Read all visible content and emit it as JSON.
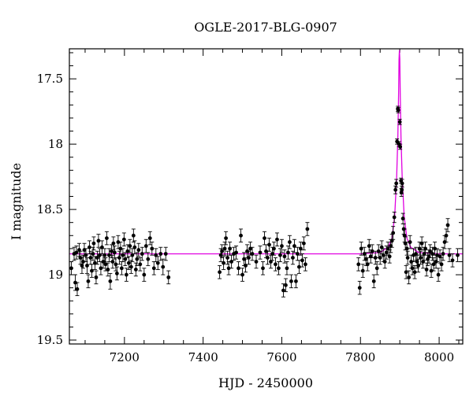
{
  "chart_data": {
    "type": "scatter",
    "title": "OGLE-2017-BLG-0907",
    "xlabel": "HJD - 2450000",
    "ylabel": "I magnitude",
    "xlim": [
      7060,
      8060
    ],
    "ylim": [
      19.53,
      17.27
    ],
    "y_inverted": true,
    "x_ticks": [
      7200,
      7400,
      7600,
      7800,
      8000
    ],
    "y_ticks": [
      17.5,
      18,
      18.5,
      19,
      19.5
    ],
    "x_tick_labels": [
      "7200",
      "7400",
      "7600",
      "7800",
      "8000"
    ],
    "y_tick_labels": [
      "17.5",
      "18",
      "18.5",
      "19",
      "19.5"
    ],
    "grid": false,
    "colors": {
      "points": "#000000",
      "model": "#e000e0"
    },
    "model": {
      "baseline": 18.84,
      "t0": 7899,
      "peak_mag": 17.28,
      "tE": 10.0,
      "u0": 0.04,
      "curve": [
        [
          7060,
          18.84
        ],
        [
          7800,
          18.84
        ],
        [
          7850,
          18.83
        ],
        [
          7870,
          18.79
        ],
        [
          7880,
          18.72
        ],
        [
          7887,
          18.55
        ],
        [
          7892,
          18.25
        ],
        [
          7895,
          17.95
        ],
        [
          7897,
          17.6
        ],
        [
          7898,
          17.35
        ],
        [
          7899,
          17.28
        ],
        [
          7900,
          17.35
        ],
        [
          7901,
          17.6
        ],
        [
          7903,
          17.95
        ],
        [
          7906,
          18.25
        ],
        [
          7911,
          18.55
        ],
        [
          7918,
          18.72
        ],
        [
          7928,
          18.79
        ],
        [
          7948,
          18.83
        ],
        [
          8000,
          18.84
        ],
        [
          8060,
          18.84
        ]
      ]
    },
    "series": [
      {
        "points": [
          [
            7065,
            18.95,
            0.05
          ],
          [
            7072,
            18.84,
            0.05
          ],
          [
            7075,
            19.06,
            0.06
          ],
          [
            7078,
            18.83,
            0.05
          ],
          [
            7080,
            19.11,
            0.05
          ],
          [
            7085,
            18.81,
            0.05
          ],
          [
            7088,
            18.87,
            0.05
          ],
          [
            7092,
            18.93,
            0.06
          ],
          [
            7095,
            18.9,
            0.05
          ],
          [
            7098,
            18.81,
            0.05
          ],
          [
            7102,
            18.85,
            0.05
          ],
          [
            7105,
            18.93,
            0.06
          ],
          [
            7108,
            19.05,
            0.05
          ],
          [
            7111,
            18.79,
            0.05
          ],
          [
            7114,
            18.87,
            0.05
          ],
          [
            7117,
            18.97,
            0.05
          ],
          [
            7120,
            18.84,
            0.05
          ],
          [
            7122,
            18.76,
            0.05
          ],
          [
            7125,
            18.91,
            0.05
          ],
          [
            7128,
            19.02,
            0.05
          ],
          [
            7131,
            18.87,
            0.05
          ],
          [
            7134,
            18.74,
            0.05
          ],
          [
            7137,
            18.85,
            0.05
          ],
          [
            7140,
            18.95,
            0.05
          ],
          [
            7143,
            18.79,
            0.05
          ],
          [
            7146,
            18.9,
            0.05
          ],
          [
            7150,
            18.85,
            0.05
          ],
          [
            7152,
            18.92,
            0.05
          ],
          [
            7155,
            18.72,
            0.05
          ],
          [
            7158,
            18.96,
            0.05
          ],
          [
            7161,
            18.85,
            0.05
          ],
          [
            7164,
            19.05,
            0.06
          ],
          [
            7167,
            18.82,
            0.05
          ],
          [
            7170,
            18.9,
            0.05
          ],
          [
            7172,
            18.76,
            0.05
          ],
          [
            7175,
            18.83,
            0.05
          ],
          [
            7178,
            18.92,
            0.05
          ],
          [
            7181,
            18.99,
            0.05
          ],
          [
            7184,
            18.75,
            0.05
          ],
          [
            7187,
            18.87,
            0.05
          ],
          [
            7190,
            18.8,
            0.05
          ],
          [
            7193,
            18.95,
            0.05
          ],
          [
            7196,
            18.85,
            0.05
          ],
          [
            7199,
            18.73,
            0.05
          ],
          [
            7202,
            18.88,
            0.05
          ],
          [
            7205,
            19.0,
            0.05
          ],
          [
            7208,
            18.82,
            0.05
          ],
          [
            7211,
            18.91,
            0.05
          ],
          [
            7214,
            18.78,
            0.05
          ],
          [
            7217,
            18.94,
            0.05
          ],
          [
            7220,
            18.85,
            0.05
          ],
          [
            7223,
            18.7,
            0.05
          ],
          [
            7226,
            18.79,
            0.05
          ],
          [
            7229,
            18.96,
            0.05
          ],
          [
            7232,
            18.88,
            0.05
          ],
          [
            7236,
            18.81,
            0.05
          ],
          [
            7240,
            18.92,
            0.05
          ],
          [
            7245,
            18.84,
            0.05
          ],
          [
            7250,
            19.0,
            0.05
          ],
          [
            7255,
            18.78,
            0.05
          ],
          [
            7260,
            18.88,
            0.05
          ],
          [
            7265,
            18.72,
            0.05
          ],
          [
            7270,
            18.8,
            0.05
          ],
          [
            7275,
            18.95,
            0.05
          ],
          [
            7280,
            18.85,
            0.05
          ],
          [
            7285,
            18.91,
            0.05
          ],
          [
            7292,
            18.84,
            0.05
          ],
          [
            7298,
            18.94,
            0.06
          ],
          [
            7305,
            18.84,
            0.05
          ],
          [
            7312,
            19.02,
            0.05
          ],
          [
            7442,
            18.98,
            0.05
          ],
          [
            7445,
            18.85,
            0.05
          ],
          [
            7448,
            18.82,
            0.05
          ],
          [
            7452,
            18.91,
            0.05
          ],
          [
            7455,
            18.8,
            0.05
          ],
          [
            7458,
            18.72,
            0.05
          ],
          [
            7462,
            18.87,
            0.05
          ],
          [
            7465,
            18.95,
            0.05
          ],
          [
            7468,
            18.8,
            0.05
          ],
          [
            7472,
            18.9,
            0.05
          ],
          [
            7478,
            18.84,
            0.05
          ],
          [
            7484,
            18.83,
            0.05
          ],
          [
            7490,
            18.95,
            0.05
          ],
          [
            7496,
            18.7,
            0.05
          ],
          [
            7500,
            19.0,
            0.05
          ],
          [
            7504,
            18.88,
            0.05
          ],
          [
            7508,
            18.93,
            0.05
          ],
          [
            7512,
            18.82,
            0.05
          ],
          [
            7516,
            18.87,
            0.05
          ],
          [
            7520,
            18.8,
            0.05
          ],
          [
            7525,
            18.84,
            0.05
          ],
          [
            7535,
            18.9,
            0.05
          ],
          [
            7545,
            18.83,
            0.05
          ],
          [
            7552,
            18.95,
            0.05
          ],
          [
            7556,
            18.72,
            0.05
          ],
          [
            7560,
            18.82,
            0.05
          ],
          [
            7564,
            18.87,
            0.05
          ],
          [
            7568,
            18.77,
            0.05
          ],
          [
            7572,
            18.9,
            0.05
          ],
          [
            7576,
            18.84,
            0.05
          ],
          [
            7580,
            18.8,
            0.05
          ],
          [
            7584,
            18.92,
            0.05
          ],
          [
            7588,
            18.73,
            0.05
          ],
          [
            7592,
            18.95,
            0.05
          ],
          [
            7596,
            18.85,
            0.05
          ],
          [
            7600,
            18.78,
            0.05
          ],
          [
            7604,
            19.12,
            0.05
          ],
          [
            7607,
            18.86,
            0.05
          ],
          [
            7610,
            19.08,
            0.05
          ],
          [
            7613,
            18.95,
            0.05
          ],
          [
            7616,
            18.83,
            0.05
          ],
          [
            7620,
            18.75,
            0.05
          ],
          [
            7624,
            19.05,
            0.05
          ],
          [
            7628,
            18.87,
            0.05
          ],
          [
            7632,
            18.78,
            0.05
          ],
          [
            7636,
            19.05,
            0.05
          ],
          [
            7640,
            18.84,
            0.05
          ],
          [
            7644,
            18.94,
            0.05
          ],
          [
            7648,
            18.8,
            0.05
          ],
          [
            7652,
            18.89,
            0.05
          ],
          [
            7656,
            18.76,
            0.05
          ],
          [
            7660,
            18.92,
            0.05
          ],
          [
            7665,
            18.65,
            0.05
          ],
          [
            7795,
            18.92,
            0.05
          ],
          [
            7798,
            19.1,
            0.05
          ],
          [
            7802,
            18.8,
            0.05
          ],
          [
            7806,
            18.97,
            0.05
          ],
          [
            7810,
            18.84,
            0.05
          ],
          [
            7814,
            18.88,
            0.05
          ],
          [
            7818,
            18.92,
            0.05
          ],
          [
            7822,
            18.78,
            0.05
          ],
          [
            7826,
            18.86,
            0.05
          ],
          [
            7830,
            18.82,
            0.05
          ],
          [
            7834,
            19.05,
            0.05
          ],
          [
            7838,
            18.87,
            0.05
          ],
          [
            7842,
            18.95,
            0.05
          ],
          [
            7846,
            18.82,
            0.05
          ],
          [
            7850,
            18.87,
            0.05
          ],
          [
            7854,
            18.79,
            0.05
          ],
          [
            7858,
            18.85,
            0.05
          ],
          [
            7862,
            18.9,
            0.05
          ],
          [
            7866,
            18.83,
            0.05
          ],
          [
            7870,
            18.8,
            0.05
          ],
          [
            7874,
            18.86,
            0.05
          ],
          [
            7877,
            18.78,
            0.05
          ],
          [
            7880,
            18.74,
            0.05
          ],
          [
            7883,
            18.68,
            0.05
          ],
          [
            7886,
            18.56,
            0.04
          ],
          [
            7889,
            18.35,
            0.03
          ],
          [
            7891,
            18.3,
            0.03
          ],
          [
            7893,
            17.98,
            0.02
          ],
          [
            7895,
            17.73,
            0.02
          ],
          [
            7896,
            17.74,
            0.02
          ],
          [
            7898,
            18.0,
            0.02
          ],
          [
            7900,
            17.83,
            0.02
          ],
          [
            7901,
            18.02,
            0.02
          ],
          [
            7903,
            18.28,
            0.02
          ],
          [
            7904,
            18.37,
            0.03
          ],
          [
            7905,
            18.35,
            0.03
          ],
          [
            7906,
            18.3,
            0.03
          ],
          [
            7908,
            18.57,
            0.04
          ],
          [
            7910,
            18.65,
            0.04
          ],
          [
            7912,
            18.7,
            0.05
          ],
          [
            7914,
            18.76,
            0.05
          ],
          [
            7916,
            18.98,
            0.05
          ],
          [
            7918,
            18.8,
            0.05
          ],
          [
            7920,
            18.87,
            0.05
          ],
          [
            7923,
            19.02,
            0.05
          ],
          [
            7926,
            18.75,
            0.05
          ],
          [
            7929,
            18.9,
            0.05
          ],
          [
            7932,
            18.95,
            0.05
          ],
          [
            7935,
            18.85,
            0.05
          ],
          [
            7938,
            18.98,
            0.05
          ],
          [
            7941,
            18.84,
            0.05
          ],
          [
            7944,
            18.9,
            0.05
          ],
          [
            7947,
            18.93,
            0.05
          ],
          [
            7950,
            18.8,
            0.05
          ],
          [
            7953,
            18.87,
            0.05
          ],
          [
            7956,
            18.76,
            0.05
          ],
          [
            7959,
            18.9,
            0.05
          ],
          [
            7962,
            18.84,
            0.05
          ],
          [
            7965,
            18.8,
            0.05
          ],
          [
            7968,
            18.96,
            0.05
          ],
          [
            7971,
            18.88,
            0.05
          ],
          [
            7974,
            18.86,
            0.05
          ],
          [
            7977,
            18.82,
            0.05
          ],
          [
            7980,
            18.97,
            0.05
          ],
          [
            7983,
            18.84,
            0.05
          ],
          [
            7986,
            18.92,
            0.05
          ],
          [
            7989,
            18.8,
            0.05
          ],
          [
            7992,
            18.9,
            0.05
          ],
          [
            7995,
            18.85,
            0.05
          ],
          [
            7998,
            19.0,
            0.05
          ],
          [
            8002,
            18.86,
            0.05
          ],
          [
            8006,
            18.92,
            0.05
          ],
          [
            8010,
            18.84,
            0.05
          ],
          [
            8014,
            18.75,
            0.05
          ],
          [
            8018,
            18.7,
            0.05
          ],
          [
            8022,
            18.62,
            0.05
          ],
          [
            8026,
            18.85,
            0.05
          ],
          [
            8034,
            18.89,
            0.05
          ],
          [
            8047,
            18.85,
            0.05
          ]
        ]
      }
    ]
  }
}
